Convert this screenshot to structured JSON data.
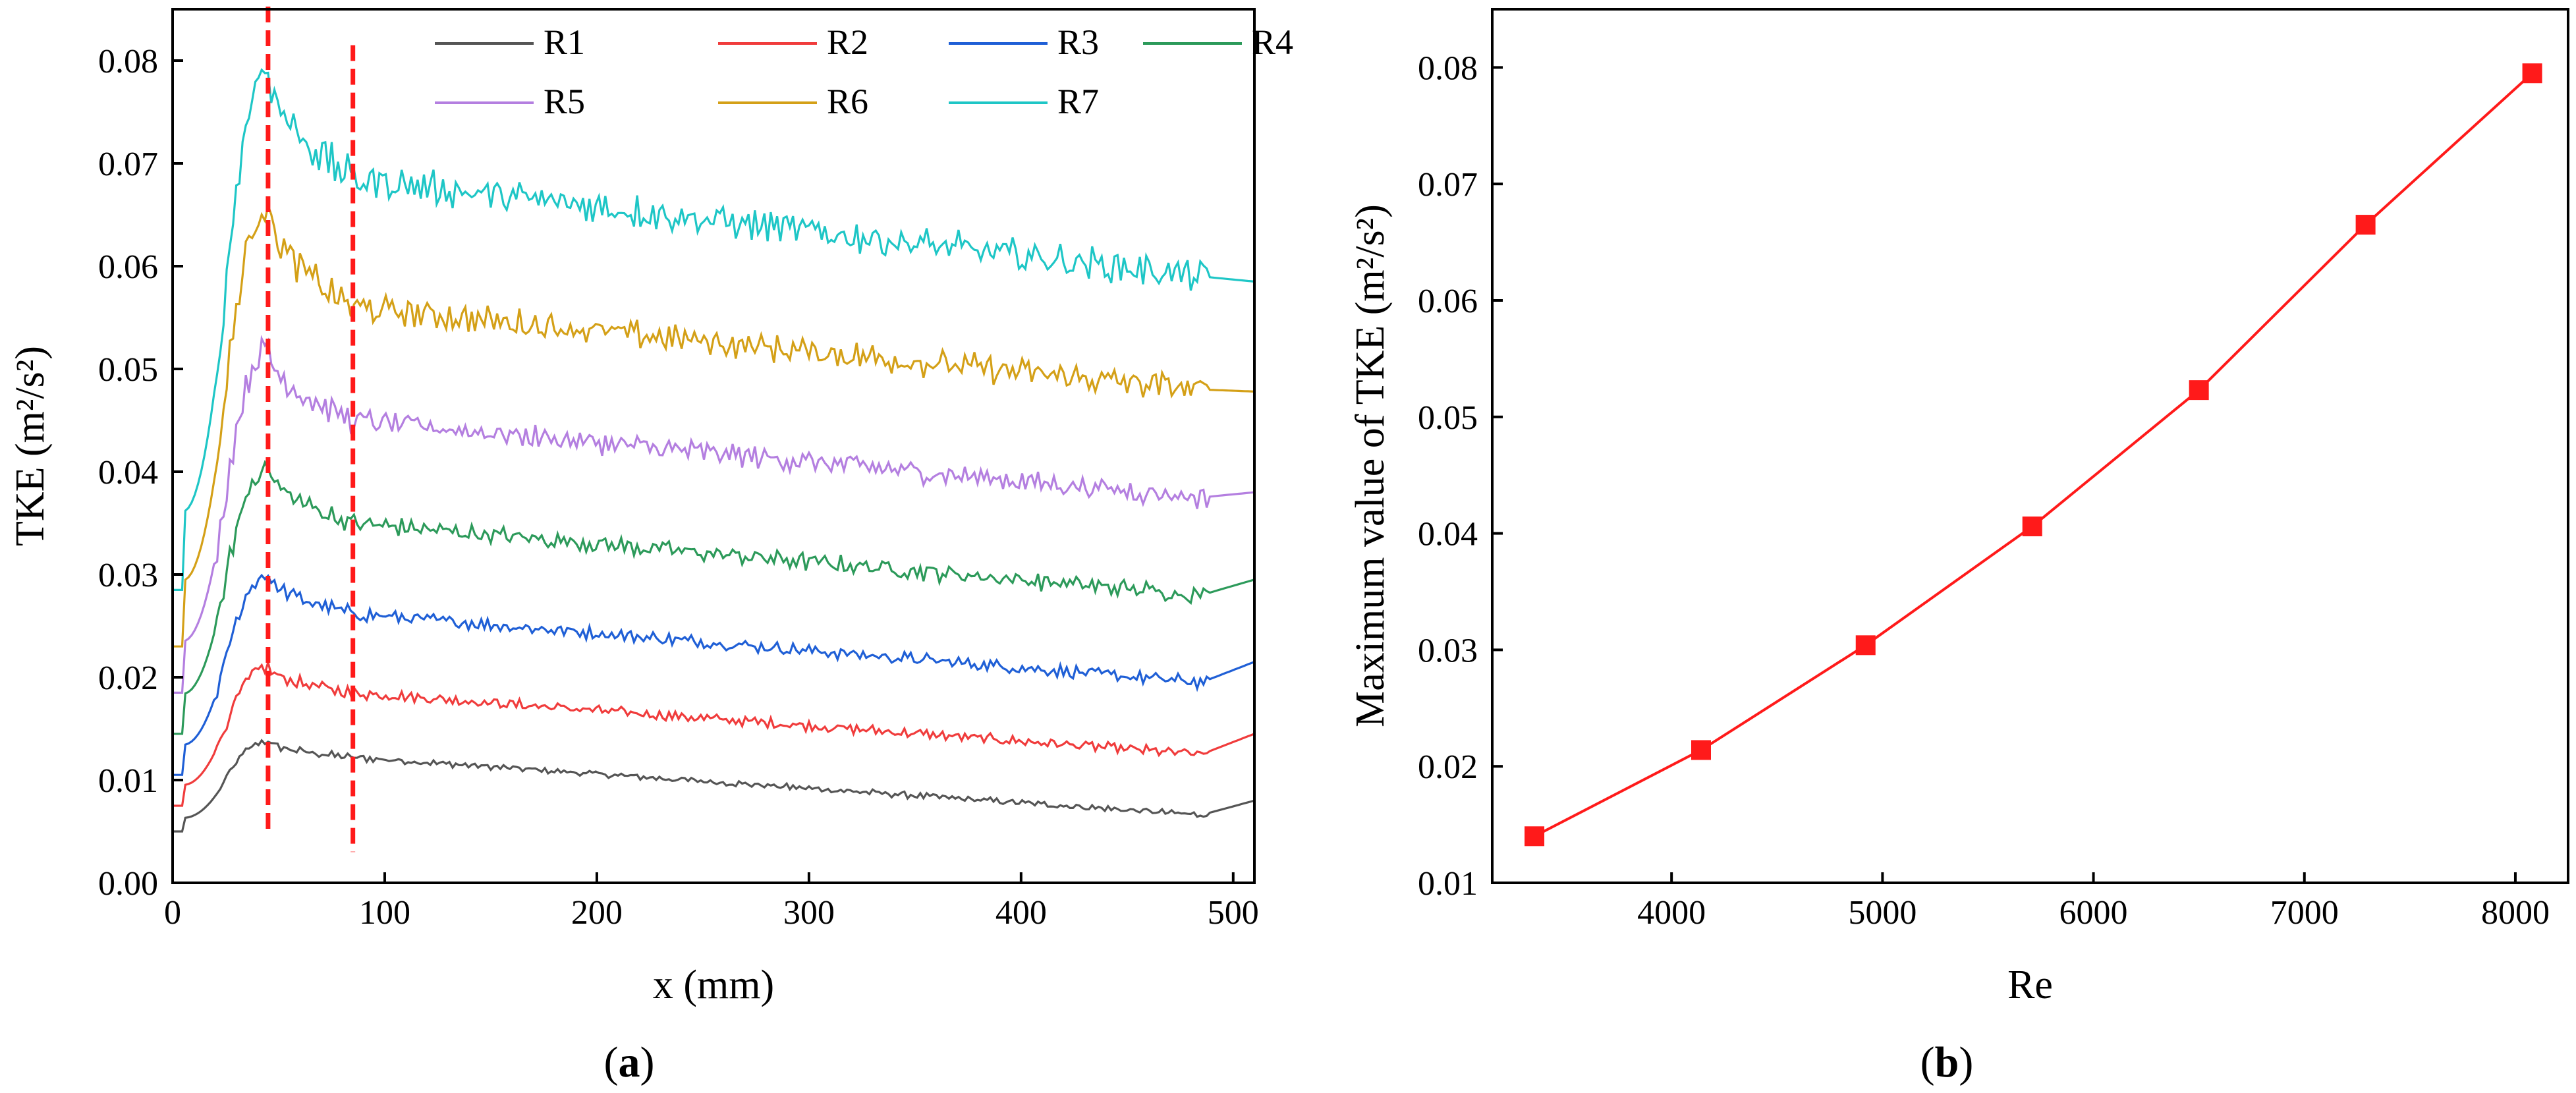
{
  "chart_data": [
    {
      "panel_label": "a",
      "type": "line",
      "xlabel": "x (mm)",
      "ylabel": "TKE (m²/s²)",
      "xlim": [
        0,
        510
      ],
      "ylim": [
        0,
        0.085
      ],
      "xticks": [
        0,
        100,
        200,
        300,
        400,
        500
      ],
      "yticks": [
        0.0,
        0.01,
        0.02,
        0.03,
        0.04,
        0.05,
        0.06,
        0.07,
        0.08
      ],
      "ytick_labels": [
        "0.00",
        "0.01",
        "0.02",
        "0.03",
        "0.04",
        "0.05",
        "0.06",
        "0.07",
        "0.08"
      ],
      "xtick_labels": [
        "0",
        "100",
        "200",
        "300",
        "400",
        "500"
      ],
      "reference_lines": [
        {
          "x": 45,
          "style": "dashed",
          "color": "#ff1a1a"
        },
        {
          "x": 85,
          "style": "dashed",
          "color": "#ff1a1a"
        }
      ],
      "legend_position": "top-right",
      "series": [
        {
          "name": "R1",
          "color": "#555555",
          "start": 0.005,
          "peak": 0.0138,
          "at85": 0.0122,
          "at485": 0.0066,
          "end": 0.008,
          "noise": 0.00025
        },
        {
          "name": "R2",
          "color": "#f03c3c",
          "start": 0.0075,
          "peak": 0.021,
          "at85": 0.0185,
          "at485": 0.0125,
          "end": 0.0145,
          "noise": 0.0004
        },
        {
          "name": "R3",
          "color": "#1f5fd6",
          "start": 0.0105,
          "peak": 0.03,
          "at85": 0.0262,
          "at485": 0.0195,
          "end": 0.0215,
          "noise": 0.0005
        },
        {
          "name": "R4",
          "color": "#2c9a5a",
          "start": 0.0145,
          "peak": 0.0405,
          "at85": 0.035,
          "at485": 0.028,
          "end": 0.0295,
          "noise": 0.0007
        },
        {
          "name": "R5",
          "color": "#b47fe0",
          "start": 0.0185,
          "peak": 0.052,
          "at85": 0.045,
          "at485": 0.0375,
          "end": 0.038,
          "noise": 0.0009
        },
        {
          "name": "R6",
          "color": "#d4a017",
          "start": 0.023,
          "peak": 0.066,
          "at85": 0.056,
          "at485": 0.048,
          "end": 0.0478,
          "noise": 0.0011
        },
        {
          "name": "R7",
          "color": "#1ec6c6",
          "start": 0.0285,
          "peak": 0.0795,
          "at85": 0.0685,
          "at485": 0.059,
          "end": 0.0585,
          "noise": 0.0013
        }
      ]
    },
    {
      "panel_label": "b",
      "type": "line",
      "xlabel": "Re",
      "ylabel": "Maximum value of TKE (m²/s²)",
      "xlim": [
        3150,
        8250
      ],
      "ylim": [
        0.01,
        0.085
      ],
      "xticks": [
        4000,
        5000,
        6000,
        7000,
        8000
      ],
      "xtick_labels": [
        "4000",
        "5000",
        "6000",
        "7000",
        "8000"
      ],
      "yticks": [
        0.01,
        0.02,
        0.03,
        0.04,
        0.05,
        0.06,
        0.07,
        0.08
      ],
      "ytick_labels": [
        "0.01",
        "0.02",
        "0.03",
        "0.04",
        "0.05",
        "0.06",
        "0.07",
        "0.08"
      ],
      "color": "#ff1a1a",
      "marker": "square",
      "x": [
        3350,
        4140,
        4920,
        5710,
        6500,
        7290,
        8080
      ],
      "y": [
        0.014,
        0.0214,
        0.0304,
        0.0406,
        0.0523,
        0.0665,
        0.0795
      ]
    }
  ]
}
